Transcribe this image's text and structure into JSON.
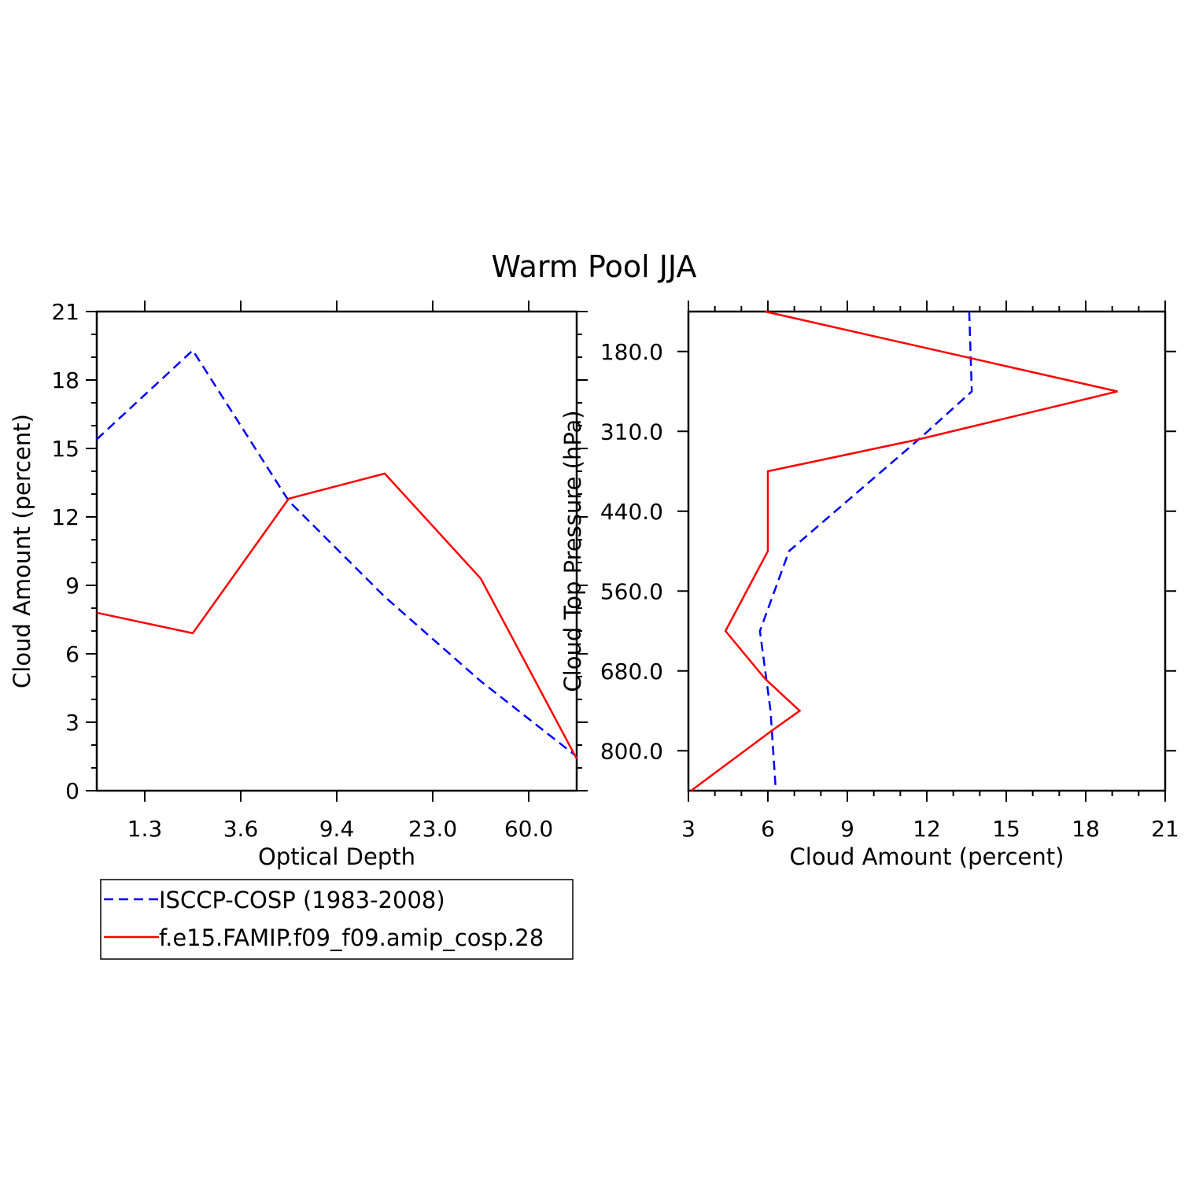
{
  "title": "Warm Pool JJA",
  "colors": {
    "obs": "#0000ff",
    "model": "#ff0000",
    "axis": "#000000"
  },
  "legend": {
    "placement": "bottom-left",
    "entries": [
      {
        "label": "ISCCP-COSP (1983-2008)",
        "color": "#0000ff",
        "dash": true
      },
      {
        "label": "f.e15.FAMIP.f09_f09.amip_cosp.28",
        "color": "#ff0000",
        "dash": false
      }
    ]
  },
  "chart_data": [
    {
      "type": "line",
      "xlabel": "Optical Depth",
      "ylabel": "Cloud Amount (percent)",
      "x_tick_labels": [
        "1.3",
        "3.6",
        "9.4",
        "23.0",
        "60.0"
      ],
      "x_categories": 7,
      "x_tick_positions": [
        0.5,
        1.5,
        2.5,
        3.5,
        4.5
      ],
      "y_ticks": [
        0,
        3,
        6,
        9,
        12,
        15,
        18,
        21
      ],
      "ylim": [
        0,
        21
      ],
      "xlim": [
        0,
        5
      ],
      "series": [
        {
          "name": "ISCCP-COSP (1983-2008)",
          "key": "obs",
          "dash": true,
          "x": [
            0,
            1,
            2,
            3,
            4,
            5
          ],
          "y": [
            15.4,
            19.3,
            12.7,
            8.5,
            4.8,
            1.5
          ]
        },
        {
          "name": "f.e15.FAMIP.f09_f09.amip_cosp.28",
          "key": "model",
          "dash": false,
          "x": [
            0,
            1,
            2,
            3,
            4,
            5
          ],
          "y": [
            7.8,
            6.9,
            12.8,
            13.9,
            9.3,
            1.4
          ]
        }
      ]
    },
    {
      "type": "line",
      "xlabel": "Cloud Amount (percent)",
      "ylabel": "Cloud Top Pressure (hPa)",
      "x_ticks": [
        3,
        6,
        9,
        12,
        15,
        18,
        21
      ],
      "xlim": [
        3,
        21
      ],
      "y_tick_labels": [
        "180.0",
        "310.0",
        "440.0",
        "560.0",
        "680.0",
        "800.0"
      ],
      "y_tick_positions": [
        0.5,
        1.5,
        2.5,
        3.5,
        4.5,
        5.5
      ],
      "ylim": [
        0,
        6
      ],
      "series": [
        {
          "name": "ISCCP-COSP (1983-2008)",
          "key": "obs",
          "dash": true,
          "x": [
            13.6,
            13.7,
            11.7,
            6.8,
            5.7,
            6.1,
            6.3
          ],
          "y": [
            0,
            1,
            1.6,
            3,
            4,
            5,
            6
          ]
        },
        {
          "name": "f.e15.FAMIP.f09_f09.amip_cosp.28",
          "key": "model",
          "dash": false,
          "x": [
            5.9,
            19.2,
            11.7,
            6.0,
            6.0,
            4.4,
            5.9,
            7.2,
            6.1,
            3.1
          ],
          "y": [
            0,
            1,
            1.6,
            2,
            3,
            4,
            4.6,
            5,
            5.26,
            6
          ]
        }
      ]
    }
  ]
}
